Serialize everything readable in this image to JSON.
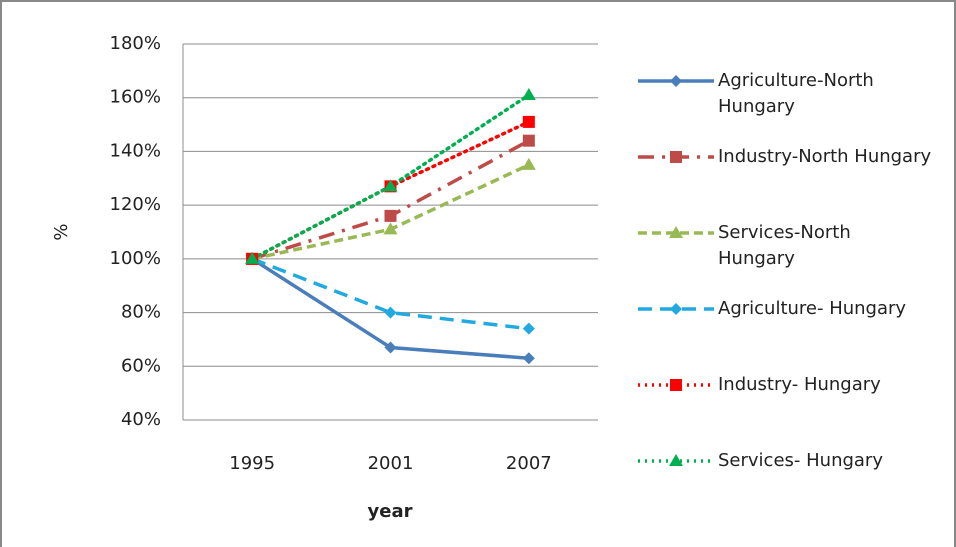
{
  "chart_data": {
    "type": "line",
    "x_label": "year",
    "y_label": "%",
    "categories": [
      "1995",
      "2001",
      "2007"
    ],
    "ylim": [
      40,
      180
    ],
    "yticks": [
      {
        "value": 40,
        "label": "40%"
      },
      {
        "value": 60,
        "label": "60%"
      },
      {
        "value": 80,
        "label": "80%"
      },
      {
        "value": 100,
        "label": "100%"
      },
      {
        "value": 120,
        "label": "120%"
      },
      {
        "value": 140,
        "label": "140%"
      },
      {
        "value": 160,
        "label": "160%"
      },
      {
        "value": 180,
        "label": "180%"
      }
    ],
    "grid": true,
    "legend": "right",
    "series": [
      {
        "name": "Agriculture-North Hungary",
        "color": "#4a7ebb",
        "dash": "solid",
        "marker": "diamond",
        "values": [
          100,
          67,
          63
        ]
      },
      {
        "name": "Industry-North Hungary",
        "color": "#be4b48",
        "dash": "dashdot",
        "marker": "square",
        "values": [
          100,
          116,
          144
        ]
      },
      {
        "name": "Services-North Hungary",
        "color": "#98b954",
        "dash": "dash",
        "marker": "triangle",
        "values": [
          100,
          111,
          135
        ]
      },
      {
        "name": "Agriculture- Hungary",
        "color": "#21a9e1",
        "dash": "longdash",
        "marker": "diamond",
        "values": [
          100,
          80,
          74
        ]
      },
      {
        "name": "Industry- Hungary",
        "color": "#ff0000",
        "dash": "dot",
        "marker": "square",
        "values": [
          100,
          127,
          151
        ]
      },
      {
        "name": "Services- Hungary",
        "color": "#00b050",
        "dash": "dot",
        "marker": "triangle",
        "values": [
          100,
          127,
          161
        ]
      }
    ]
  }
}
